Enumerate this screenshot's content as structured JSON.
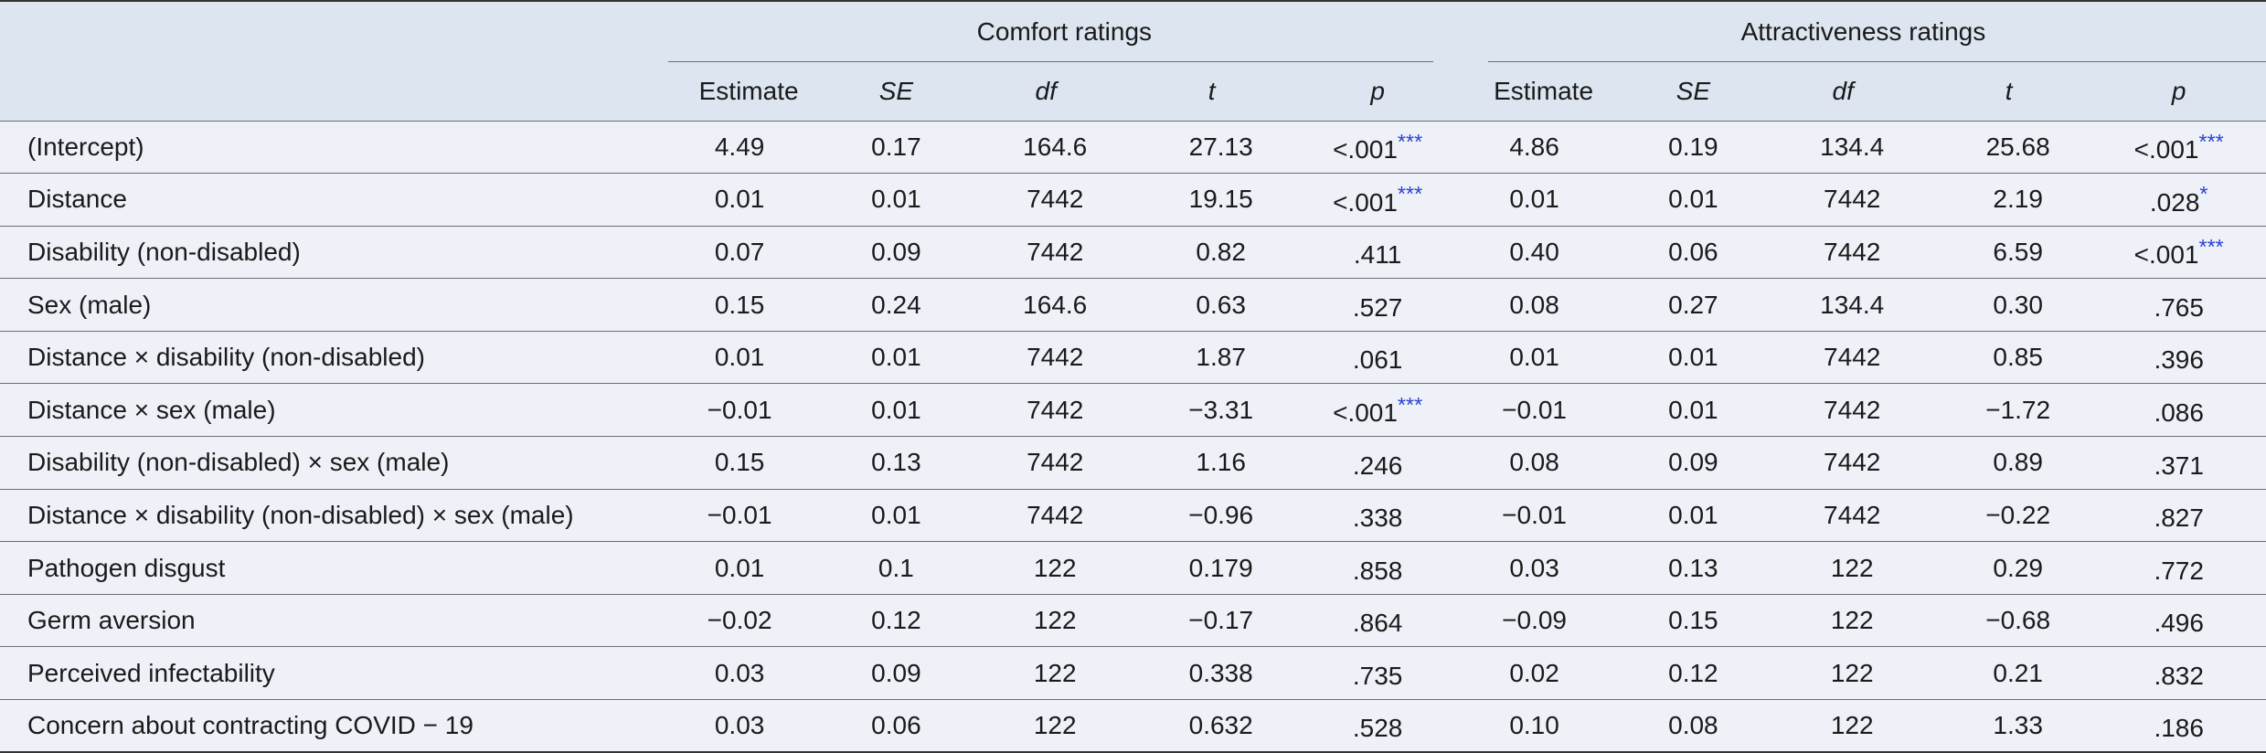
{
  "groups": {
    "comfort": "Comfort ratings",
    "attractiveness": "Attractiveness ratings"
  },
  "columns": [
    "Estimate",
    "SE",
    "df",
    "t",
    "p"
  ],
  "rows": [
    {
      "label": "(Intercept)",
      "c": [
        "4.49",
        "0.17",
        "164.6",
        "27.13",
        "<.001"
      ],
      "c_sig": "***",
      "a": [
        "4.86",
        "0.19",
        "134.4",
        "25.68",
        "<.001"
      ],
      "a_sig": "***"
    },
    {
      "label": "Distance",
      "c": [
        "0.01",
        "0.01",
        "7442",
        "19.15",
        "<.001"
      ],
      "c_sig": "***",
      "a": [
        "0.01",
        "0.01",
        "7442",
        "2.19",
        ".028"
      ],
      "a_sig": "*"
    },
    {
      "label": "Disability (non-disabled)",
      "c": [
        "0.07",
        "0.09",
        "7442",
        "0.82",
        ".411"
      ],
      "c_sig": "",
      "a": [
        "0.40",
        "0.06",
        "7442",
        "6.59",
        "<.001"
      ],
      "a_sig": "***"
    },
    {
      "label": "Sex (male)",
      "c": [
        "0.15",
        "0.24",
        "164.6",
        "0.63",
        ".527"
      ],
      "c_sig": "",
      "a": [
        "0.08",
        "0.27",
        "134.4",
        "0.30",
        ".765"
      ],
      "a_sig": ""
    },
    {
      "label": "Distance × disability (non-disabled)",
      "c": [
        "0.01",
        "0.01",
        "7442",
        "1.87",
        ".061"
      ],
      "c_sig": "",
      "a": [
        "0.01",
        "0.01",
        "7442",
        "0.85",
        ".396"
      ],
      "a_sig": ""
    },
    {
      "label": "Distance × sex (male)",
      "c": [
        "−0.01",
        "0.01",
        "7442",
        "−3.31",
        "<.001"
      ],
      "c_sig": "***",
      "a": [
        "−0.01",
        "0.01",
        "7442",
        "−1.72",
        ".086"
      ],
      "a_sig": ""
    },
    {
      "label": "Disability (non-disabled) × sex (male)",
      "c": [
        "0.15",
        "0.13",
        "7442",
        "1.16",
        ".246"
      ],
      "c_sig": "",
      "a": [
        "0.08",
        "0.09",
        "7442",
        "0.89",
        ".371"
      ],
      "a_sig": ""
    },
    {
      "label": "Distance × disability (non-disabled) × sex (male)",
      "c": [
        "−0.01",
        "0.01",
        "7442",
        "−0.96",
        ".338"
      ],
      "c_sig": "",
      "a": [
        "−0.01",
        "0.01",
        "7442",
        "−0.22",
        ".827"
      ],
      "a_sig": ""
    },
    {
      "label": "Pathogen disgust",
      "c": [
        "0.01",
        "0.1",
        "122",
        "0.179",
        ".858"
      ],
      "c_sig": "",
      "a": [
        "0.03",
        "0.13",
        "122",
        "0.29",
        ".772"
      ],
      "a_sig": ""
    },
    {
      "label": "Germ aversion",
      "c": [
        "−0.02",
        "0.12",
        "122",
        "−0.17",
        ".864"
      ],
      "c_sig": "",
      "a": [
        "−0.09",
        "0.15",
        "122",
        "−0.68",
        ".496"
      ],
      "a_sig": ""
    },
    {
      "label": "Perceived infectability",
      "c": [
        "0.03",
        "0.09",
        "122",
        "0.338",
        ".735"
      ],
      "c_sig": "",
      "a": [
        "0.02",
        "0.12",
        "122",
        "0.21",
        ".832"
      ],
      "a_sig": ""
    },
    {
      "label": "Concern about contracting COVID − 19",
      "c": [
        "0.03",
        "0.06",
        "122",
        "0.632",
        ".528"
      ],
      "c_sig": "",
      "a": [
        "0.10",
        "0.08",
        "122",
        "1.33",
        ".186"
      ],
      "a_sig": ""
    }
  ],
  "colors": {
    "header_bg": "#dce5f0",
    "row_bg": "#eef2f8",
    "significance": "#2a3fd4"
  }
}
